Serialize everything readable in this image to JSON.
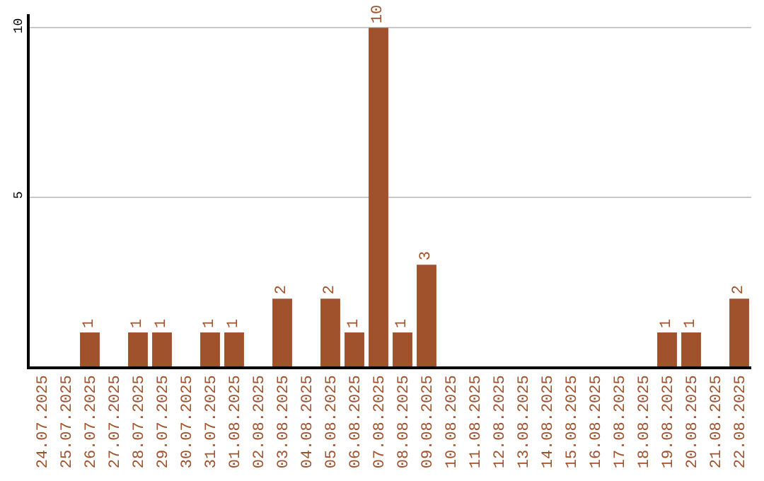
{
  "chart_data": {
    "type": "bar",
    "categories": [
      "24.07.2025",
      "25.07.2025",
      "26.07.2025",
      "27.07.2025",
      "28.07.2025",
      "29.07.2025",
      "30.07.2025",
      "31.07.2025",
      "01.08.2025",
      "02.08.2025",
      "03.08.2025",
      "04.08.2025",
      "05.08.2025",
      "06.08.2025",
      "07.08.2025",
      "08.08.2025",
      "09.08.2025",
      "10.08.2025",
      "11.08.2025",
      "12.08.2025",
      "13.08.2025",
      "14.08.2025",
      "15.08.2025",
      "16.08.2025",
      "17.08.2025",
      "18.08.2025",
      "19.08.2025",
      "20.08.2025",
      "21.08.2025",
      "22.08.2025"
    ],
    "values": [
      0,
      0,
      1,
      0,
      1,
      1,
      0,
      1,
      1,
      0,
      2,
      0,
      2,
      1,
      10,
      1,
      3,
      0,
      0,
      0,
      0,
      0,
      0,
      0,
      0,
      0,
      1,
      1,
      0,
      2
    ],
    "value_labels": [
      null,
      null,
      "1",
      null,
      "1",
      "1",
      null,
      "1",
      "1",
      null,
      "2",
      null,
      "2",
      "1",
      "10",
      "1",
      "3",
      null,
      null,
      null,
      null,
      null,
      null,
      null,
      null,
      null,
      "1",
      "1",
      null,
      "2"
    ],
    "color": "#a0522d",
    "ylim": [
      0,
      10.4
    ],
    "yticks": [
      5,
      10
    ],
    "grid": "y",
    "legend": false
  }
}
